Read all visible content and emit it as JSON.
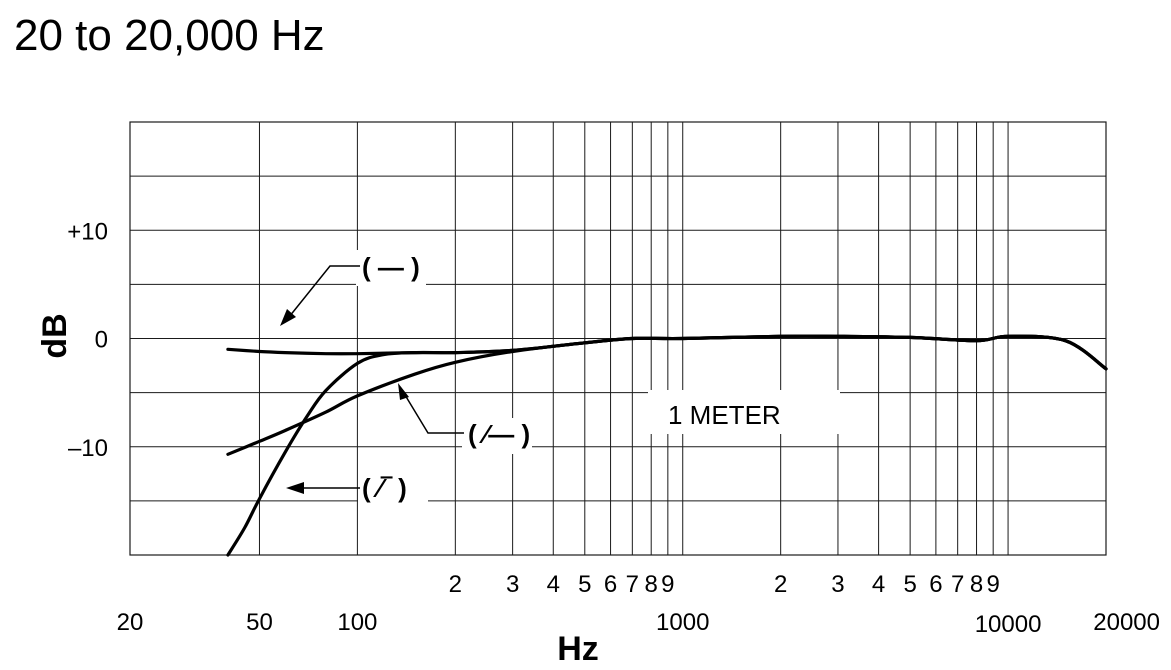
{
  "title": "20 to 20,000 Hz",
  "chart_data": {
    "type": "line",
    "title": "20 to 20,000 Hz",
    "xlabel": "Hz",
    "ylabel": "dB",
    "xscale": "log",
    "xlim": [
      20,
      20000
    ],
    "ylim": [
      -20,
      20
    ],
    "grid": true,
    "x_ticks_major": [
      {
        "value": 20,
        "label": "20"
      },
      {
        "value": 50,
        "label": "50"
      },
      {
        "value": 100,
        "label": "100"
      },
      {
        "value": 1000,
        "label": "1000"
      },
      {
        "value": 10000,
        "label": "10000"
      },
      {
        "value": 20000,
        "label": "20000"
      }
    ],
    "x_ticks_minor": [
      {
        "value": 200,
        "label": "2"
      },
      {
        "value": 300,
        "label": "3"
      },
      {
        "value": 400,
        "label": "4"
      },
      {
        "value": 500,
        "label": "5"
      },
      {
        "value": 600,
        "label": "6"
      },
      {
        "value": 700,
        "label": "7"
      },
      {
        "value": 800,
        "label": "8"
      },
      {
        "value": 900,
        "label": "9"
      },
      {
        "value": 2000,
        "label": "2"
      },
      {
        "value": 3000,
        "label": "3"
      },
      {
        "value": 4000,
        "label": "4"
      },
      {
        "value": 5000,
        "label": "5"
      },
      {
        "value": 6000,
        "label": "6"
      },
      {
        "value": 7000,
        "label": "7"
      },
      {
        "value": 8000,
        "label": "8"
      },
      {
        "value": 9000,
        "label": "9"
      }
    ],
    "y_ticks": [
      {
        "value": 10,
        "label": "+10"
      },
      {
        "value": 0,
        "label": "0"
      },
      {
        "value": -10,
        "label": "–10"
      }
    ],
    "annotation": "1 METER",
    "series": [
      {
        "name": "( — )",
        "x": [
          40,
          50,
          60,
          80,
          100,
          150,
          200,
          300,
          500,
          700,
          1000,
          2000,
          3000,
          5000,
          8000,
          10000,
          15000,
          20000
        ],
        "y": [
          -1,
          -1.2,
          -1.3,
          -1.4,
          -1.4,
          -1.3,
          -1.3,
          -1.1,
          -0.4,
          0,
          0,
          0.2,
          0.2,
          0.1,
          -0.2,
          0.2,
          -0.2,
          -2.8
        ]
      },
      {
        "name": "( ⁄— )",
        "x": [
          40,
          50,
          60,
          80,
          100,
          150,
          200,
          300,
          500,
          700,
          1000,
          2000,
          3000,
          5000,
          8000,
          10000,
          15000,
          20000
        ],
        "y": [
          -10.7,
          -9.5,
          -8.5,
          -6.8,
          -5.3,
          -3.3,
          -2.2,
          -1.2,
          -0.4,
          0,
          0,
          0.2,
          0.2,
          0.1,
          -0.2,
          0.2,
          -0.2,
          -2.8
        ]
      },
      {
        "name": "( ⁄‾ )",
        "x": [
          40,
          45,
          50,
          60,
          70,
          80,
          100,
          120,
          150,
          200,
          300,
          500,
          700,
          1000,
          2000,
          3000,
          5000,
          8000,
          10000,
          15000,
          20000
        ],
        "y": [
          -20,
          -17.5,
          -14.8,
          -10.5,
          -7.2,
          -4.8,
          -2.3,
          -1.5,
          -1.3,
          -1.3,
          -1.1,
          -0.4,
          0,
          0,
          0.2,
          0.2,
          0.1,
          -0.2,
          0.2,
          -0.2,
          -2.8
        ]
      }
    ]
  }
}
